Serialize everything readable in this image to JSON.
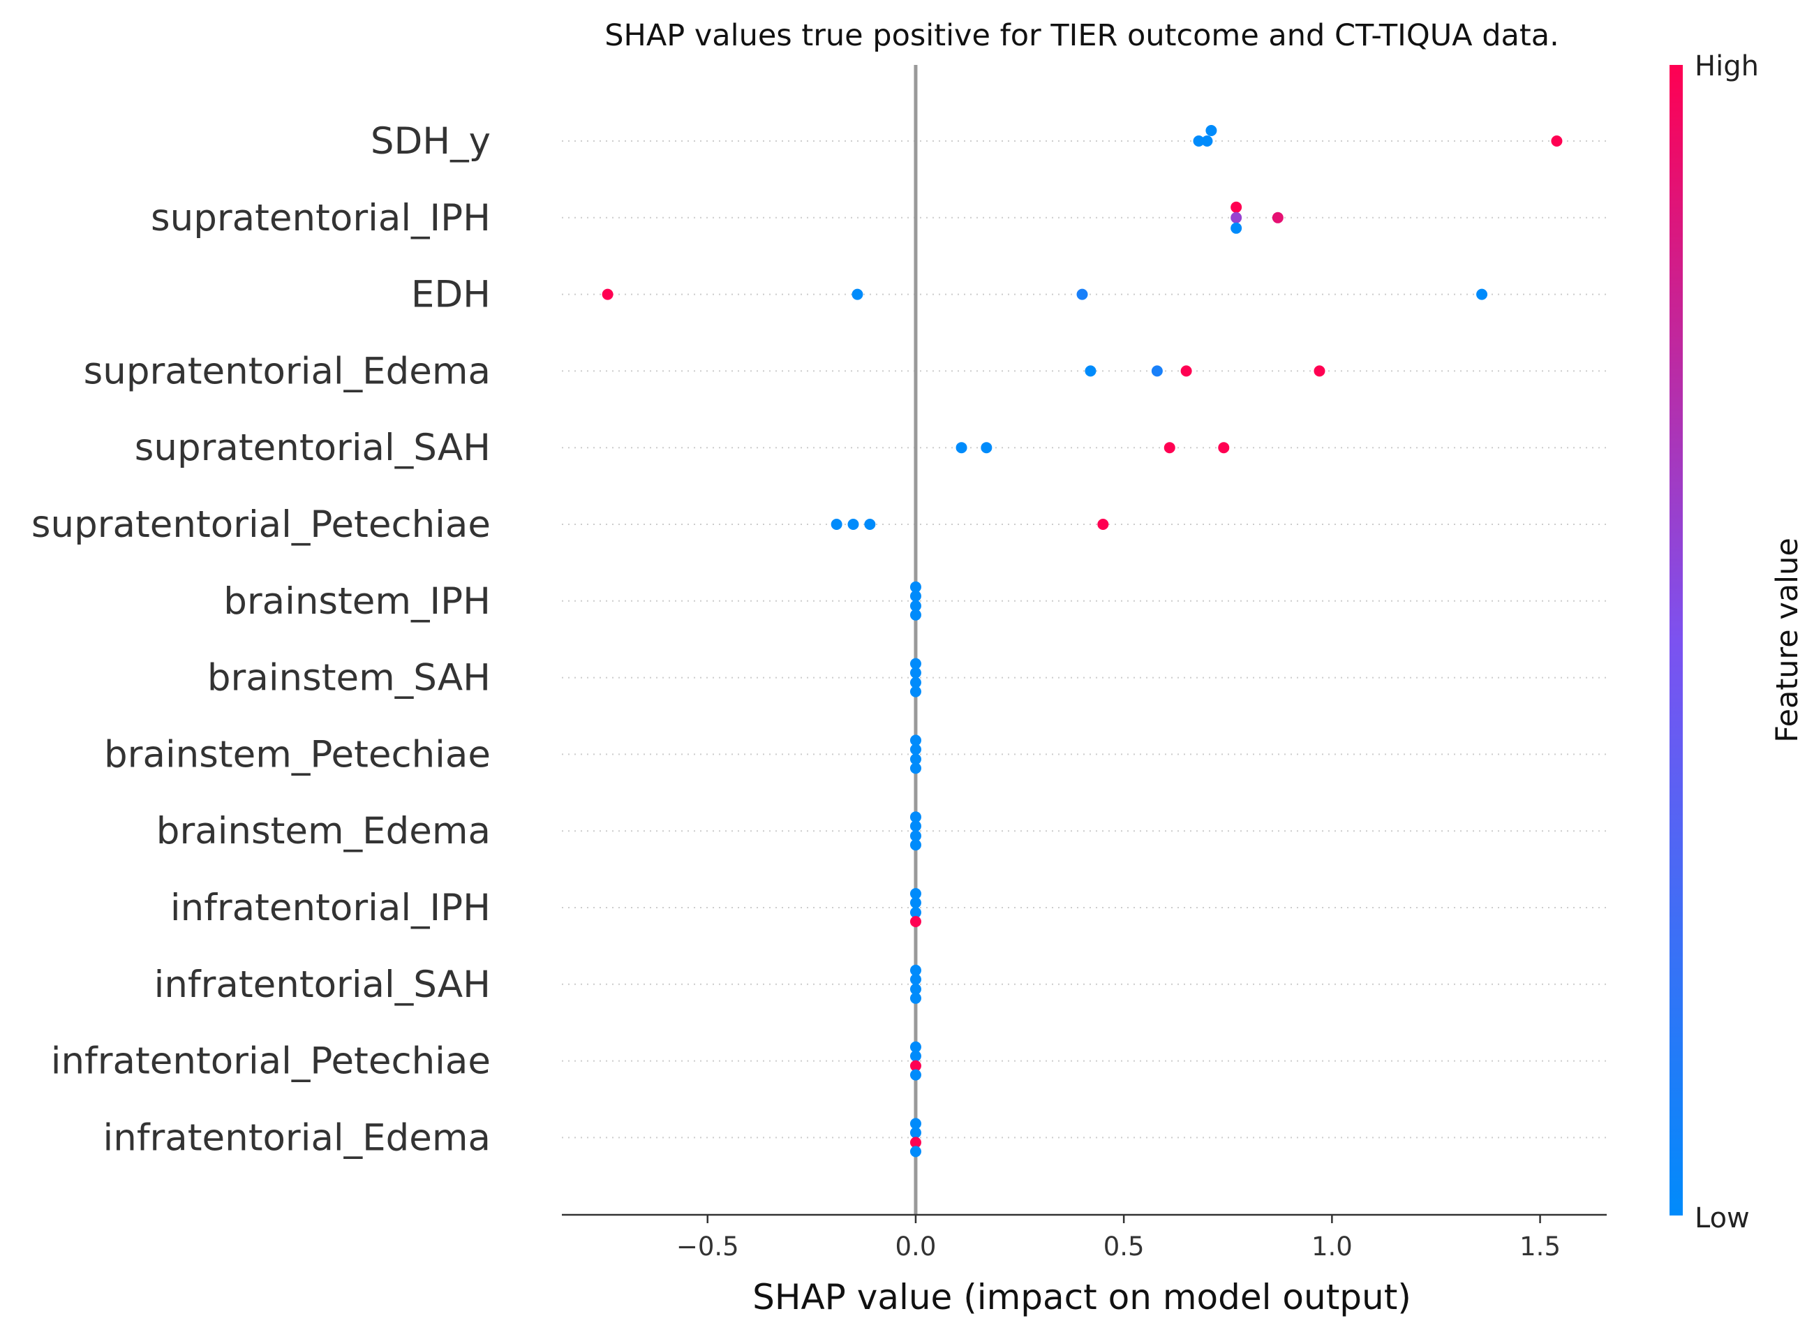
{
  "chart_data": {
    "type": "scatter",
    "title": "SHAP values true positive for TIER outcome and CT-TIQUA data.",
    "xlabel": "SHAP value (impact on model output)",
    "xlim": [
      -0.85,
      1.66
    ],
    "xticks": [
      -0.5,
      0.0,
      0.5,
      1.0,
      1.5
    ],
    "xtick_labels": [
      "−0.5",
      "0.0",
      "0.5",
      "1.0",
      "1.5"
    ],
    "colorbar": {
      "title": "Feature value",
      "high_label": "High",
      "low_label": "Low",
      "low_color": "#008bfb",
      "high_color": "#ff0052"
    },
    "zero_line_color": "#999999",
    "features": [
      {
        "name": "SDH_y",
        "points": [
          {
            "x": 0.71,
            "v": 0,
            "o": -0.75
          },
          {
            "x": 0.68,
            "v": 0,
            "o": 0
          },
          {
            "x": 0.7,
            "v": 0,
            "o": 0
          },
          {
            "x": 1.54,
            "v": 1,
            "o": 0
          }
        ]
      },
      {
        "name": "supratentorial_IPH",
        "points": [
          {
            "x": 0.77,
            "v": 1,
            "o": -0.75
          },
          {
            "x": 0.77,
            "v": 0.6,
            "o": 0
          },
          {
            "x": 0.87,
            "v": 0.9,
            "o": 0
          },
          {
            "x": 0.77,
            "v": 0,
            "o": 0.75
          }
        ]
      },
      {
        "name": "EDH",
        "points": [
          {
            "x": -0.74,
            "v": 1,
            "o": 0
          },
          {
            "x": -0.14,
            "v": 0,
            "o": 0
          },
          {
            "x": 0.4,
            "v": 0.1,
            "o": 0
          },
          {
            "x": 1.36,
            "v": 0,
            "o": 0
          }
        ]
      },
      {
        "name": "supratentorial_Edema",
        "points": [
          {
            "x": 0.42,
            "v": 0,
            "o": 0
          },
          {
            "x": 0.58,
            "v": 0.1,
            "o": 0
          },
          {
            "x": 0.65,
            "v": 1,
            "o": 0
          },
          {
            "x": 0.97,
            "v": 1,
            "o": 0
          }
        ]
      },
      {
        "name": "supratentorial_SAH",
        "points": [
          {
            "x": 0.11,
            "v": 0,
            "o": 0
          },
          {
            "x": 0.17,
            "v": 0,
            "o": 0
          },
          {
            "x": 0.61,
            "v": 1,
            "o": 0
          },
          {
            "x": 0.74,
            "v": 1,
            "o": 0
          }
        ]
      },
      {
        "name": "supratentorial_Petechiae",
        "points": [
          {
            "x": -0.19,
            "v": 0,
            "o": 0
          },
          {
            "x": -0.15,
            "v": 0,
            "o": 0
          },
          {
            "x": -0.11,
            "v": 0,
            "o": 0
          },
          {
            "x": 0.45,
            "v": 1,
            "o": 0
          }
        ]
      },
      {
        "name": "brainstem_IPH",
        "points": [
          {
            "x": 0,
            "v": 0,
            "o": -1.0
          },
          {
            "x": 0,
            "v": 0,
            "o": -0.35
          },
          {
            "x": 0,
            "v": 0,
            "o": 0.35
          },
          {
            "x": 0,
            "v": 0,
            "o": 1.0
          }
        ]
      },
      {
        "name": "brainstem_SAH",
        "points": [
          {
            "x": 0,
            "v": 0,
            "o": -1.0
          },
          {
            "x": 0,
            "v": 0,
            "o": -0.35
          },
          {
            "x": 0,
            "v": 0,
            "o": 0.35
          },
          {
            "x": 0,
            "v": 0,
            "o": 1.0
          }
        ]
      },
      {
        "name": "brainstem_Petechiae",
        "points": [
          {
            "x": 0,
            "v": 0,
            "o": -1.0
          },
          {
            "x": 0,
            "v": 0,
            "o": -0.35
          },
          {
            "x": 0,
            "v": 0,
            "o": 0.35
          },
          {
            "x": 0,
            "v": 0,
            "o": 1.0
          }
        ]
      },
      {
        "name": "brainstem_Edema",
        "points": [
          {
            "x": 0,
            "v": 0,
            "o": -1.0
          },
          {
            "x": 0,
            "v": 0,
            "o": -0.35
          },
          {
            "x": 0,
            "v": 0,
            "o": 0.35
          },
          {
            "x": 0,
            "v": 0,
            "o": 1.0
          }
        ]
      },
      {
        "name": "infratentorial_IPH",
        "points": [
          {
            "x": 0,
            "v": 0,
            "o": -1.0
          },
          {
            "x": 0,
            "v": 0,
            "o": -0.35
          },
          {
            "x": 0,
            "v": 0,
            "o": 0.35
          },
          {
            "x": 0,
            "v": 1,
            "o": 1.0
          }
        ]
      },
      {
        "name": "infratentorial_SAH",
        "points": [
          {
            "x": 0,
            "v": 0,
            "o": -1.0
          },
          {
            "x": 0,
            "v": 0,
            "o": -0.35
          },
          {
            "x": 0,
            "v": 0,
            "o": 0.35
          },
          {
            "x": 0,
            "v": 0,
            "o": 1.0
          }
        ]
      },
      {
        "name": "infratentorial_Petechiae",
        "points": [
          {
            "x": 0,
            "v": 0,
            "o": -1.0
          },
          {
            "x": 0,
            "v": 0,
            "o": -0.35
          },
          {
            "x": 0,
            "v": 1,
            "o": 0.35
          },
          {
            "x": 0,
            "v": 0,
            "o": 1.0
          }
        ]
      },
      {
        "name": "infratentorial_Edema",
        "points": [
          {
            "x": 0,
            "v": 0,
            "o": -1.0
          },
          {
            "x": 0,
            "v": 0,
            "o": -0.35
          },
          {
            "x": 0,
            "v": 1,
            "o": 0.35
          },
          {
            "x": 0,
            "v": 0,
            "o": 1.0
          }
        ]
      }
    ]
  }
}
